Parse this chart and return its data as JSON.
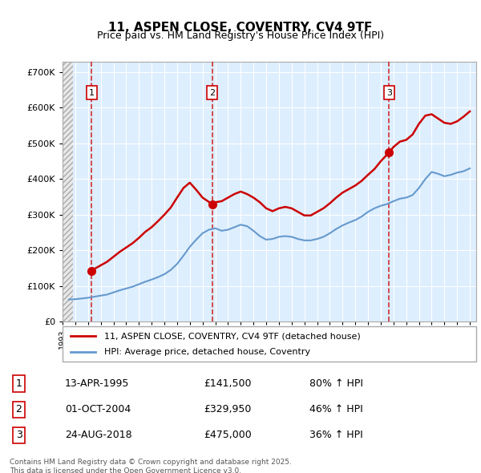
{
  "title": "11, ASPEN CLOSE, COVENTRY, CV4 9TF",
  "subtitle": "Price paid vs. HM Land Registry's House Price Index (HPI)",
  "sale_dates": [
    "1995-04-13",
    "2004-10-01",
    "2018-08-24"
  ],
  "sale_prices": [
    141500,
    329950,
    475000
  ],
  "sale_labels": [
    "1",
    "2",
    "3"
  ],
  "sale_date_labels": [
    "13-APR-1995",
    "01-OCT-2004",
    "24-AUG-2018"
  ],
  "sale_price_labels": [
    "£141,500",
    "£329,950",
    "£475,000"
  ],
  "sale_hpi_labels": [
    "80% ↑ HPI",
    "46% ↑ HPI",
    "36% ↑ HPI"
  ],
  "hpi_color": "#6699cc",
  "price_color": "#cc0000",
  "sale_marker_color": "#cc0000",
  "ylabel_color": "#333333",
  "bg_hatch_color": "#cccccc",
  "grid_color": "#cccccc",
  "footnote": "Contains HM Land Registry data © Crown copyright and database right 2025.\nThis data is licensed under the Open Government Licence v3.0.",
  "legend_label_price": "11, ASPEN CLOSE, COVENTRY, CV4 9TF (detached house)",
  "legend_label_hpi": "HPI: Average price, detached house, Coventry",
  "ylim": [
    0,
    730000
  ],
  "yticks": [
    0,
    100000,
    200000,
    300000,
    400000,
    500000,
    600000,
    700000
  ],
  "ytick_labels": [
    "£0",
    "£100K",
    "£200K",
    "£300K",
    "£400K",
    "£500K",
    "£600K",
    "£700K"
  ]
}
